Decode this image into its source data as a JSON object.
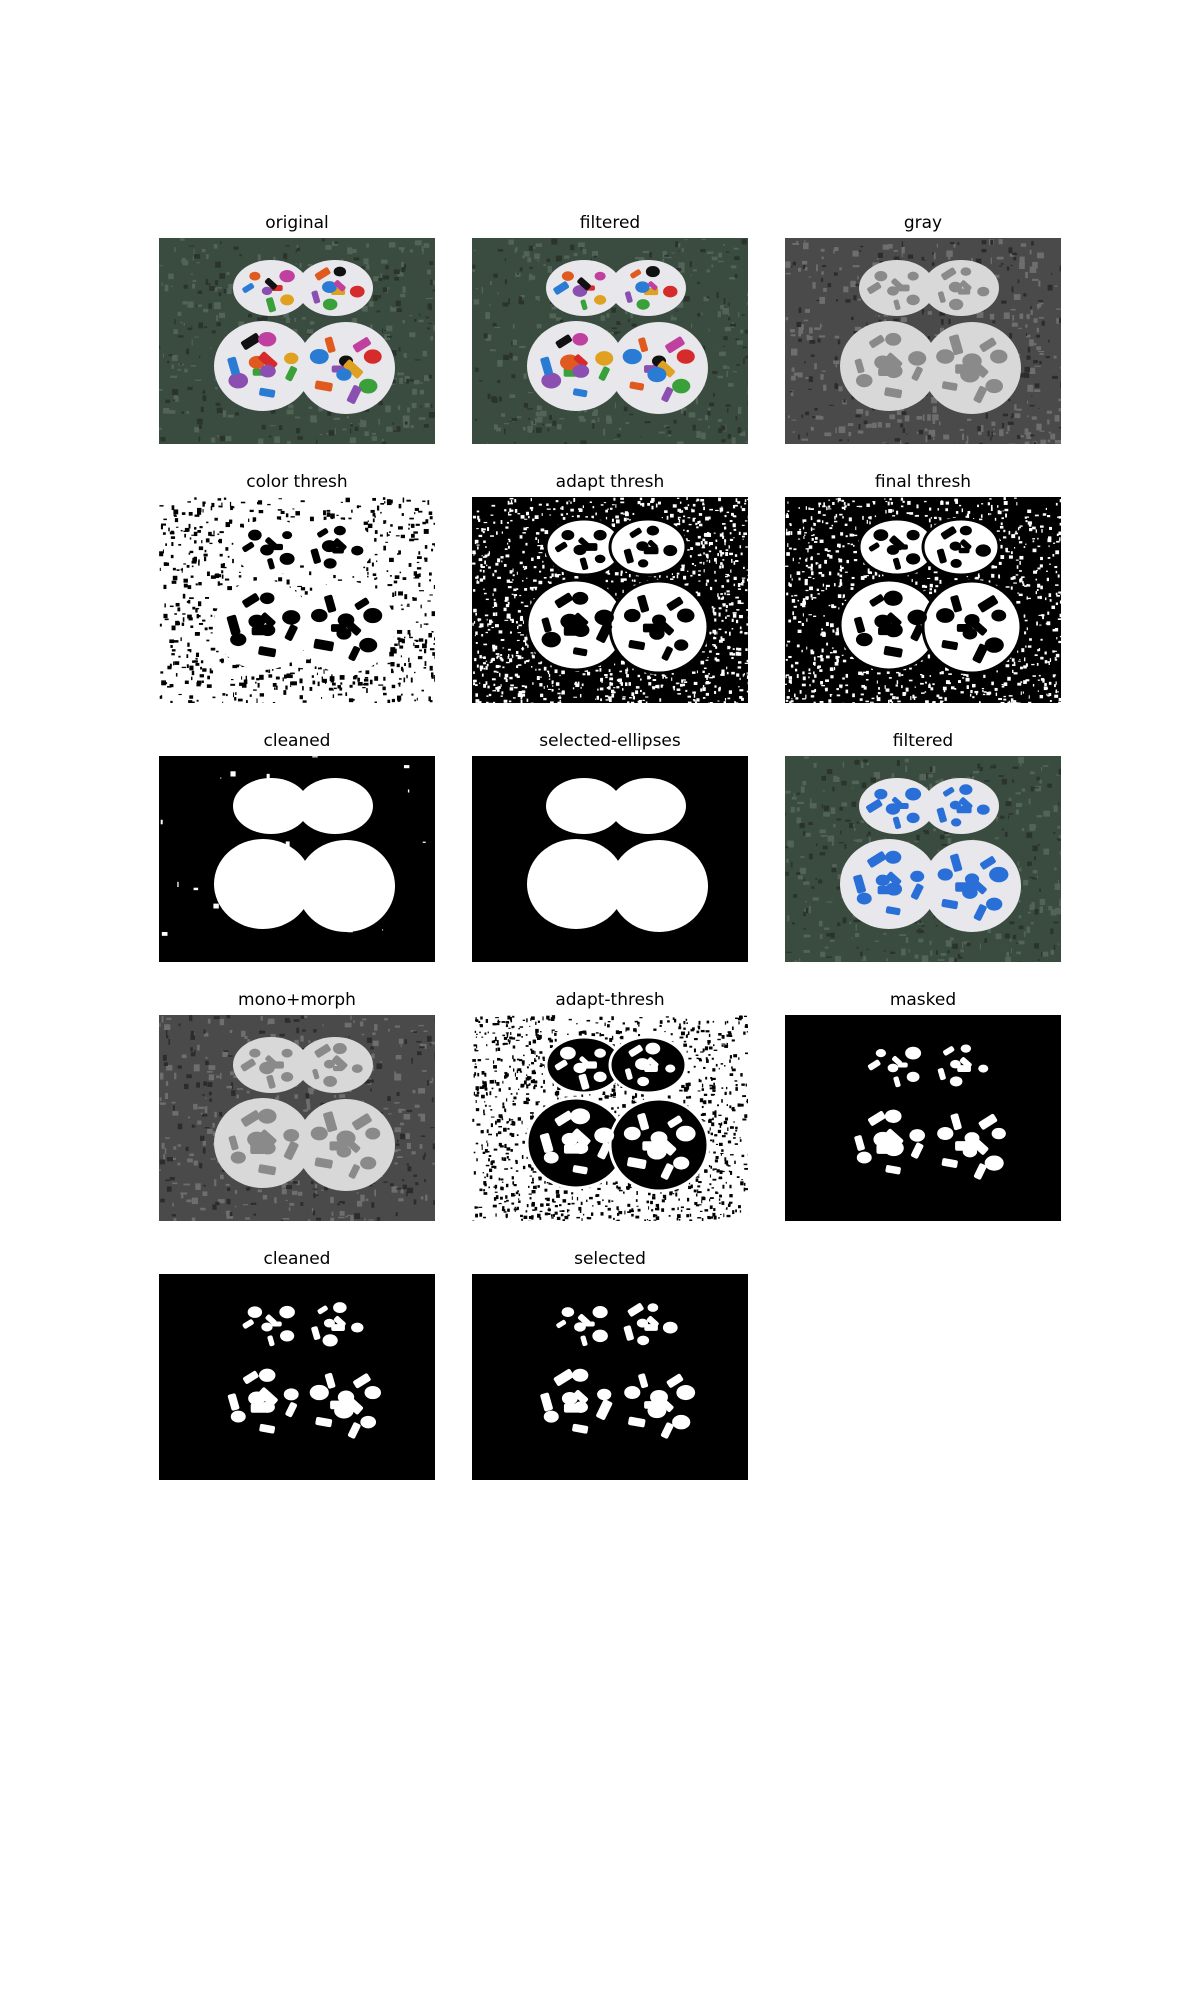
{
  "panels": [
    {
      "title": "original",
      "style": "photo"
    },
    {
      "title": "filtered",
      "style": "photo"
    },
    {
      "title": "gray",
      "style": "gray"
    },
    {
      "title": "color thresh",
      "style": "color-thresh"
    },
    {
      "title": "adapt thresh",
      "style": "adapt"
    },
    {
      "title": "final thresh",
      "style": "final"
    },
    {
      "title": "cleaned",
      "style": "cleaned-ellipses"
    },
    {
      "title": "selected-ellipses",
      "style": "selected-ellipses"
    },
    {
      "title": "filtered",
      "style": "photo-blue"
    },
    {
      "title": "mono+morph",
      "style": "gray"
    },
    {
      "title": "adapt-thresh",
      "style": "adapt-inv"
    },
    {
      "title": "masked",
      "style": "masked"
    },
    {
      "title": "cleaned",
      "style": "masked"
    },
    {
      "title": "selected",
      "style": "masked"
    }
  ],
  "colors": {
    "table": "#3c4a3f",
    "card": "#e6e6ea",
    "black": "#000000",
    "white": "#ffffff"
  }
}
